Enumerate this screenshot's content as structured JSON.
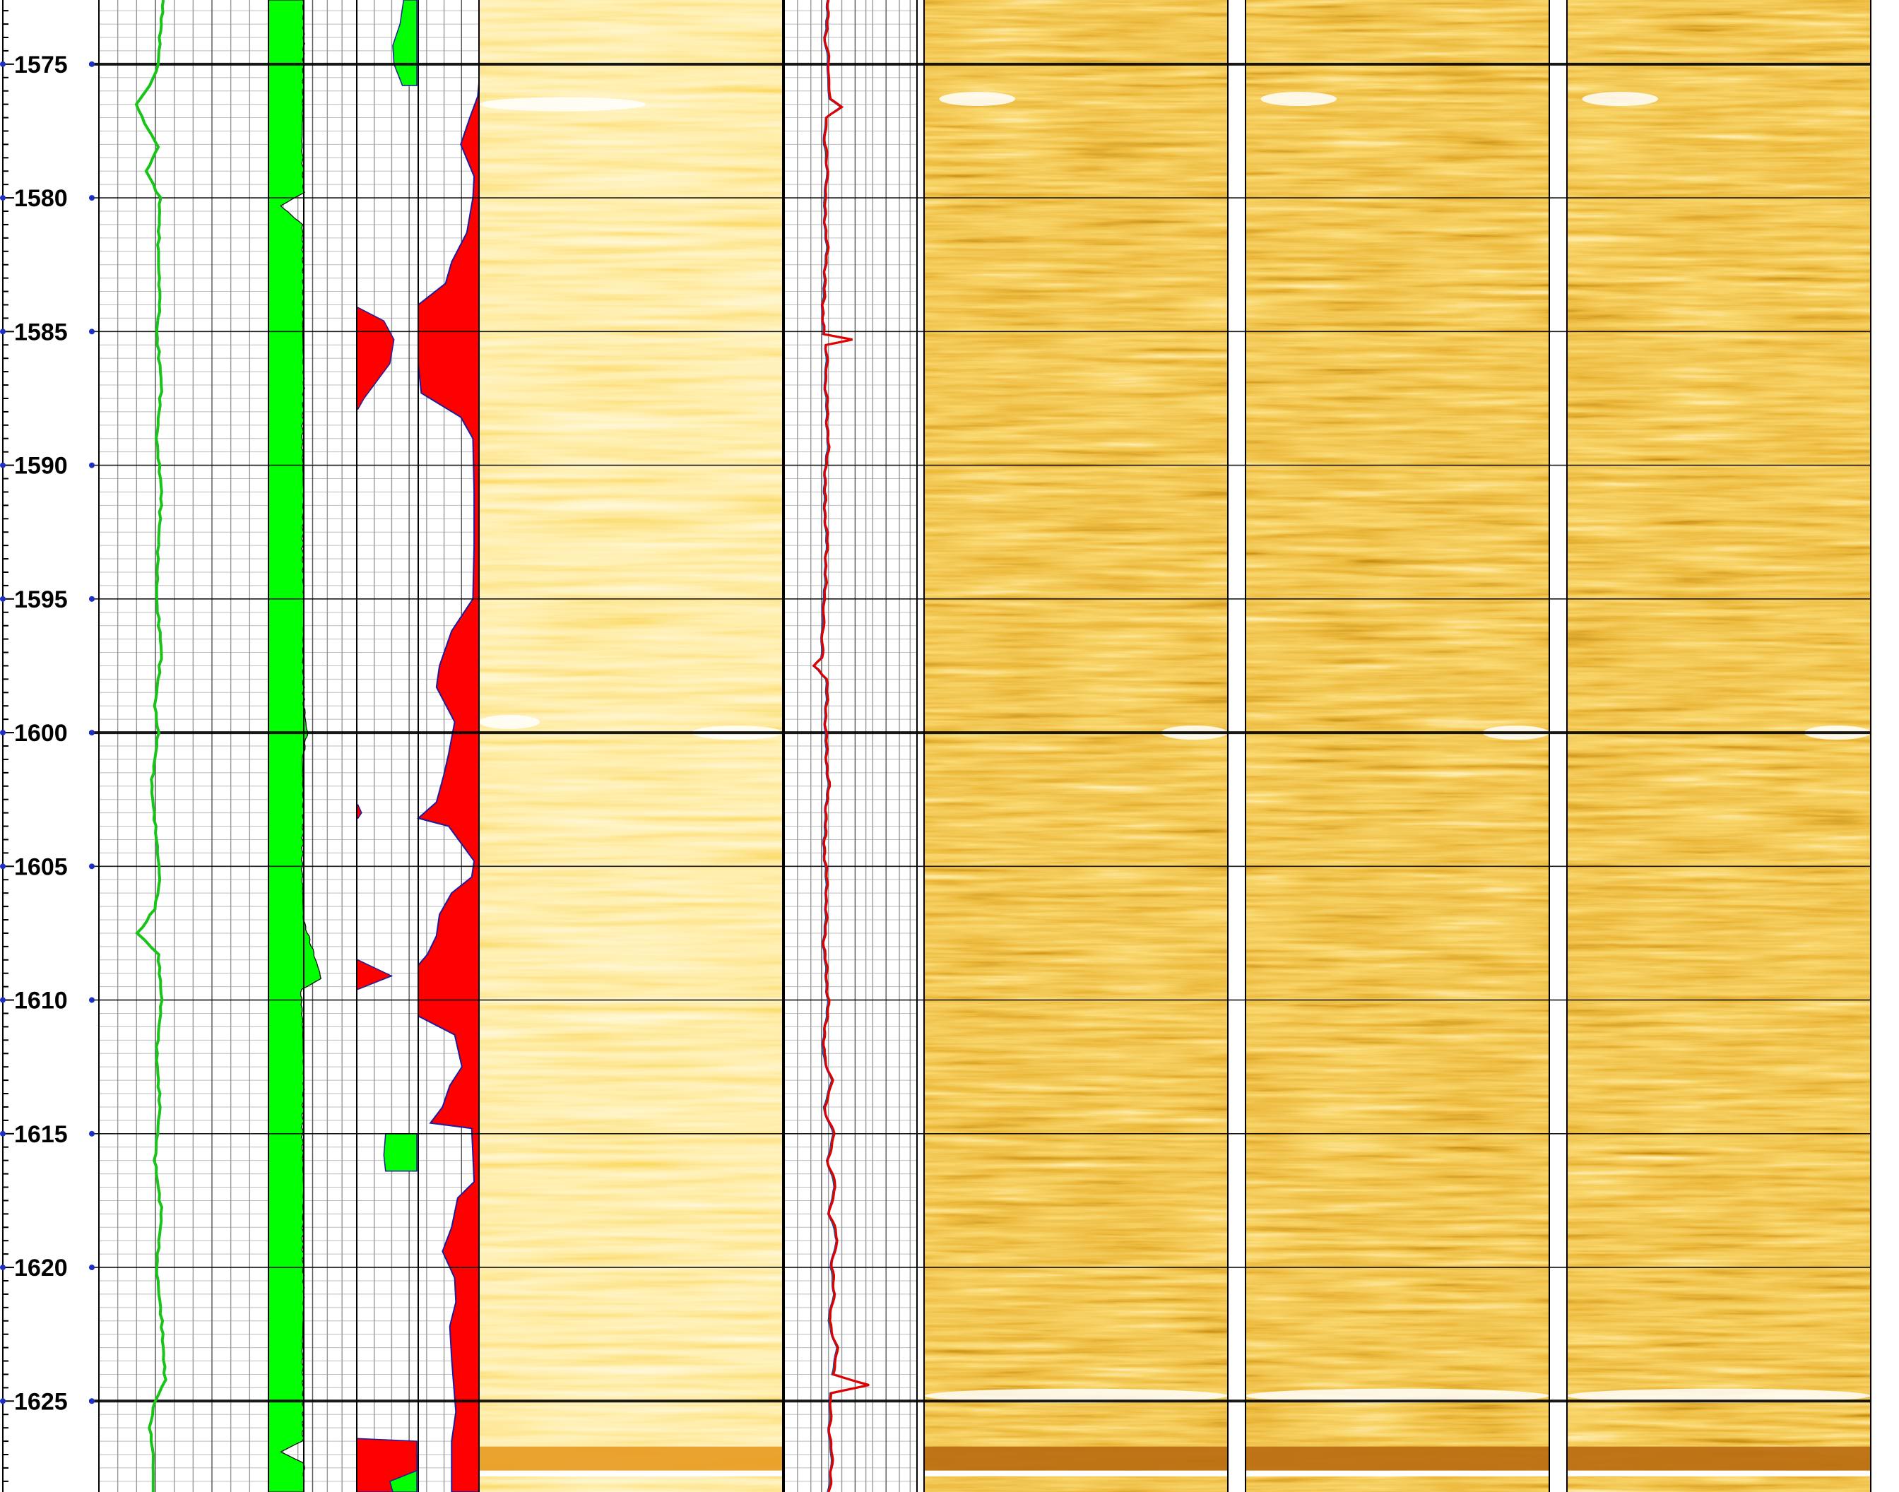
{
  "chart_data": {
    "type": "well-log",
    "y_axis": {
      "label": "",
      "unit": "",
      "range": [
        1572.6,
        1628.4
      ],
      "major_tick_step": 5,
      "minor_tick_step": 0.5,
      "inverted": true
    },
    "depth_labels": [
      "1575",
      "1580",
      "1585",
      "1590",
      "1595",
      "1600",
      "1605",
      "1610",
      "1615",
      "1620",
      "1625"
    ],
    "colors": {
      "gamma_curve": "#19c419",
      "green_fill": "#00ff00",
      "red_fill": "#ff0000",
      "curve_outline": "#1c1c9c",
      "multi_curve": [
        "#e00000",
        "#00b000",
        "#2020d0"
      ],
      "image_light": "#fff8d8",
      "image_mid": "#f2b040",
      "image_dark": "#6a3000",
      "grid_major": "#000000",
      "grid_minor": "#bdbdbd"
    },
    "tracks": [
      {
        "name": "",
        "kind": "curve",
        "color": "gamma_curve",
        "x_scale": [
          0,
          1
        ],
        "points": [
          [
            1572.6,
            0.38
          ],
          [
            1574,
            0.36
          ],
          [
            1575,
            0.35
          ],
          [
            1575.8,
            0.3
          ],
          [
            1576.5,
            0.22
          ],
          [
            1577.2,
            0.27
          ],
          [
            1578.1,
            0.35
          ],
          [
            1579,
            0.28
          ],
          [
            1580,
            0.36
          ],
          [
            1582,
            0.35
          ],
          [
            1584,
            0.36
          ],
          [
            1585,
            0.34
          ],
          [
            1587,
            0.37
          ],
          [
            1589,
            0.34
          ],
          [
            1591,
            0.37
          ],
          [
            1593,
            0.35
          ],
          [
            1595,
            0.34
          ],
          [
            1597,
            0.37
          ],
          [
            1599,
            0.33
          ],
          [
            1600,
            0.35
          ],
          [
            1602,
            0.31
          ],
          [
            1604,
            0.34
          ],
          [
            1605.5,
            0.36
          ],
          [
            1606.6,
            0.33
          ],
          [
            1607.5,
            0.23
          ],
          [
            1608.3,
            0.35
          ],
          [
            1610,
            0.37
          ],
          [
            1612,
            0.34
          ],
          [
            1614,
            0.36
          ],
          [
            1616,
            0.33
          ],
          [
            1618,
            0.37
          ],
          [
            1620,
            0.34
          ],
          [
            1622,
            0.37
          ],
          [
            1624.2,
            0.39
          ],
          [
            1625,
            0.33
          ],
          [
            1626,
            0.3
          ],
          [
            1627,
            0.32
          ],
          [
            1628.4,
            0.32
          ]
        ]
      },
      {
        "name": "",
        "kind": "filled-curve",
        "fill": "green_fill",
        "x_scale": [
          0,
          1
        ],
        "points": [
          [
            1572.6,
            0.98
          ],
          [
            1574,
            1.0
          ],
          [
            1576,
            0.98
          ],
          [
            1578,
            0.95
          ],
          [
            1579.8,
            1.0
          ],
          [
            1580.3,
            0.35
          ],
          [
            1581,
            0.96
          ],
          [
            1583,
            0.99
          ],
          [
            1585,
            0.97
          ],
          [
            1587,
            1.0
          ],
          [
            1589,
            0.96
          ],
          [
            1591,
            0.99
          ],
          [
            1593,
            0.97
          ],
          [
            1595,
            1.0
          ],
          [
            1597,
            0.98
          ],
          [
            1599,
            1.0
          ],
          [
            1600,
            1.1
          ],
          [
            1601,
            0.96
          ],
          [
            1603,
            0.99
          ],
          [
            1605,
            0.95
          ],
          [
            1607,
            0.99
          ],
          [
            1609.2,
            1.5
          ],
          [
            1609.6,
            0.92
          ],
          [
            1611,
            0.97
          ],
          [
            1613,
            1.0
          ],
          [
            1615,
            0.96
          ],
          [
            1617,
            0.99
          ],
          [
            1619,
            0.97
          ],
          [
            1621,
            1.0
          ],
          [
            1623,
            0.96
          ],
          [
            1625,
            0.99
          ],
          [
            1626.5,
            0.97
          ],
          [
            1626.9,
            0.35
          ],
          [
            1627.3,
            1.0
          ],
          [
            1628.4,
            1.0
          ]
        ]
      },
      {
        "name": "",
        "kind": "fill-segments",
        "fill": "green_fill",
        "x_scale": [
          0,
          1
        ],
        "segments": [
          {
            "points": [
              [
                1572.6,
                0.78
              ],
              [
                1573.5,
                0.72
              ],
              [
                1574.3,
                0.6
              ],
              [
                1575,
                0.62
              ],
              [
                1575.8,
                0.76
              ],
              [
                1575.8,
                0.76
              ]
            ]
          },
          {
            "points": [
              [
                1615,
                0.48
              ],
              [
                1615.8,
                0.45
              ],
              [
                1616.4,
                0.48
              ],
              [
                1616.4,
                0.48
              ]
            ]
          },
          {
            "points": [
              [
                1627,
                0.5
              ],
              [
                1627.8,
                0.52
              ],
              [
                1628.4,
                0.55
              ]
            ]
          }
        ]
      },
      {
        "name": "",
        "kind": "fill-segments",
        "fill": "red_fill",
        "x_scale": [
          0,
          1
        ],
        "segments": [
          {
            "points": [
              [
                1584.1,
                0.02
              ],
              [
                1584.6,
                0.45
              ],
              [
                1585.3,
                0.62
              ],
              [
                1586.2,
                0.55
              ],
              [
                1587.5,
                0.12
              ],
              [
                1587.9,
                0.02
              ]
            ]
          },
          {
            "points": [
              [
                1602.7,
                0.02
              ],
              [
                1603.0,
                0.08
              ],
              [
                1603.2,
                0.02
              ]
            ]
          },
          {
            "points": [
              [
                1608.5,
                0.02
              ],
              [
                1609.1,
                0.58
              ],
              [
                1609.6,
                0.02
              ]
            ]
          },
          {
            "points": [
              [
                1626.4,
                0.02
              ],
              [
                1626.5,
                1.0
              ],
              [
                1627.6,
                1.0
              ],
              [
                1628.0,
                0.55
              ],
              [
                1628.4,
                0.6
              ]
            ]
          }
        ]
      },
      {
        "name": "",
        "kind": "filled-curve-right",
        "fill": "red_fill",
        "x_scale": [
          0,
          1
        ],
        "points": [
          [
            1575.7,
            1.0
          ],
          [
            1576.2,
            0.98
          ],
          [
            1577,
            0.85
          ],
          [
            1578,
            0.7
          ],
          [
            1579.2,
            0.92
          ],
          [
            1580,
            0.9
          ],
          [
            1581.3,
            0.8
          ],
          [
            1582.4,
            0.55
          ],
          [
            1583.2,
            0.45
          ],
          [
            1584.0,
            0.0
          ],
          [
            1584.5,
            0.0
          ],
          [
            1586.2,
            0.0
          ],
          [
            1587.3,
            0.05
          ],
          [
            1588.2,
            0.7
          ],
          [
            1589,
            0.9
          ],
          [
            1591,
            0.92
          ],
          [
            1593,
            0.92
          ],
          [
            1595,
            0.9
          ],
          [
            1596.2,
            0.55
          ],
          [
            1597.5,
            0.35
          ],
          [
            1598.3,
            0.3
          ],
          [
            1599.6,
            0.6
          ],
          [
            1600.8,
            0.5
          ],
          [
            1601.6,
            0.42
          ],
          [
            1602.6,
            0.3
          ],
          [
            1603.2,
            0.0
          ],
          [
            1603.5,
            0.5
          ],
          [
            1604.8,
            0.92
          ],
          [
            1605.4,
            0.88
          ],
          [
            1606.0,
            0.55
          ],
          [
            1606.8,
            0.35
          ],
          [
            1607.6,
            0.3
          ],
          [
            1608.3,
            0.15
          ],
          [
            1608.7,
            0.0
          ],
          [
            1610.6,
            0.0
          ],
          [
            1611.3,
            0.6
          ],
          [
            1612.5,
            0.72
          ],
          [
            1613.2,
            0.52
          ],
          [
            1614.0,
            0.4
          ],
          [
            1614.6,
            0.2
          ],
          [
            1614.8,
            0.88
          ],
          [
            1616.8,
            0.92
          ],
          [
            1617.4,
            0.65
          ],
          [
            1618.5,
            0.55
          ],
          [
            1619.4,
            0.4
          ],
          [
            1620.4,
            0.6
          ],
          [
            1621.3,
            0.62
          ],
          [
            1622.2,
            0.52
          ],
          [
            1623.4,
            0.55
          ],
          [
            1624.3,
            0.58
          ],
          [
            1625.4,
            0.62
          ],
          [
            1626.5,
            0.55
          ],
          [
            1628.4,
            0.55
          ]
        ]
      },
      {
        "name": "",
        "kind": "image",
        "style": "light-static"
      },
      {
        "name": "",
        "kind": "multi-curve",
        "x_scale": [
          0,
          1
        ],
        "points": [
          [
            1572.6,
            0.33
          ],
          [
            1574,
            0.31
          ],
          [
            1575,
            0.33
          ],
          [
            1576.3,
            0.34
          ],
          [
            1576.6,
            0.43
          ],
          [
            1577,
            0.32
          ],
          [
            1578,
            0.3
          ],
          [
            1579,
            0.33
          ],
          [
            1580,
            0.3
          ],
          [
            1582,
            0.32
          ],
          [
            1584,
            0.29
          ],
          [
            1585.1,
            0.3
          ],
          [
            1585.3,
            0.52
          ],
          [
            1585.5,
            0.32
          ],
          [
            1587,
            0.31
          ],
          [
            1589,
            0.33
          ],
          [
            1591,
            0.3
          ],
          [
            1593,
            0.32
          ],
          [
            1595,
            0.3
          ],
          [
            1597.2,
            0.28
          ],
          [
            1597.5,
            0.23
          ],
          [
            1598,
            0.32
          ],
          [
            1600,
            0.31
          ],
          [
            1602,
            0.33
          ],
          [
            1604,
            0.3
          ],
          [
            1606,
            0.32
          ],
          [
            1608,
            0.3
          ],
          [
            1610,
            0.33
          ],
          [
            1612,
            0.29
          ],
          [
            1613,
            0.36
          ],
          [
            1614,
            0.3
          ],
          [
            1615,
            0.37
          ],
          [
            1616,
            0.33
          ],
          [
            1617,
            0.38
          ],
          [
            1618,
            0.34
          ],
          [
            1619,
            0.4
          ],
          [
            1620,
            0.35
          ],
          [
            1621,
            0.38
          ],
          [
            1622,
            0.33
          ],
          [
            1623,
            0.4
          ],
          [
            1624,
            0.36
          ],
          [
            1624.4,
            0.63
          ],
          [
            1624.7,
            0.35
          ],
          [
            1626,
            0.34
          ],
          [
            1627.5,
            0.36
          ],
          [
            1628.4,
            0.33
          ]
        ]
      },
      {
        "name": "",
        "kind": "image",
        "style": "dynamic"
      },
      {
        "name": "",
        "kind": "image",
        "style": "dynamic"
      },
      {
        "name": "",
        "kind": "image",
        "style": "dynamic"
      }
    ]
  }
}
